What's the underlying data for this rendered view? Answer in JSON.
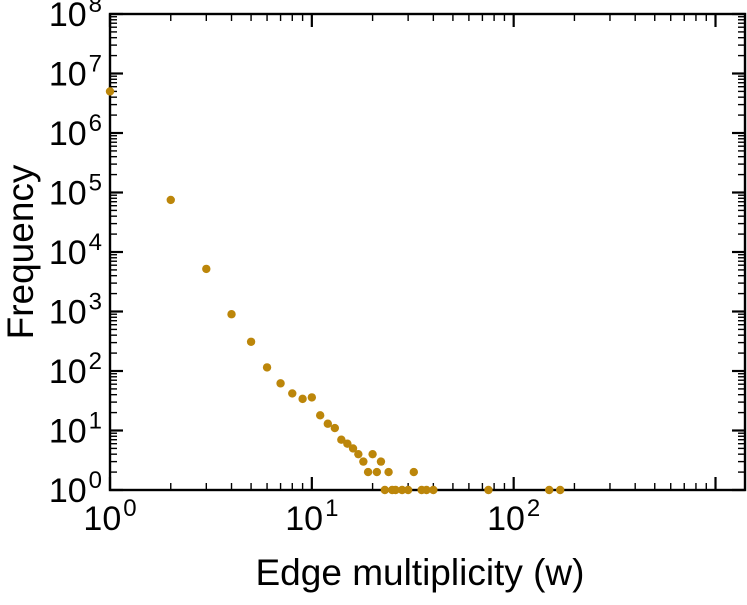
{
  "chart_data": {
    "type": "scatter",
    "title": "",
    "xlabel": "Edge multiplicity (w)",
    "ylabel": "Frequency",
    "xscale": "log",
    "yscale": "log",
    "xlim": [
      1,
      1400
    ],
    "ylim": [
      1,
      100000000
    ],
    "x_tick_label_exponents": [
      0,
      1,
      2
    ],
    "y_tick_label_exponents": [
      0,
      1,
      2,
      3,
      4,
      5,
      6,
      7,
      8
    ],
    "grid": false,
    "legend": false,
    "marker": "filled-circle",
    "point_color": "#bc860a",
    "axis_color": "#000000",
    "background_color": "#ffffff",
    "points": [
      [
        1,
        5000000
      ],
      [
        2,
        75000
      ],
      [
        3,
        5200
      ],
      [
        4,
        900
      ],
      [
        5,
        310
      ],
      [
        6,
        115
      ],
      [
        7,
        62
      ],
      [
        8,
        42
      ],
      [
        9,
        34
      ],
      [
        10,
        36
      ],
      [
        11,
        18
      ],
      [
        12,
        13
      ],
      [
        13,
        11
      ],
      [
        14,
        7
      ],
      [
        15,
        6
      ],
      [
        16,
        5
      ],
      [
        17,
        4
      ],
      [
        18,
        3
      ],
      [
        19,
        2
      ],
      [
        20,
        4
      ],
      [
        21,
        2
      ],
      [
        22,
        3
      ],
      [
        23,
        1
      ],
      [
        24,
        2
      ],
      [
        25,
        1
      ],
      [
        26,
        1
      ],
      [
        28,
        1
      ],
      [
        30,
        1
      ],
      [
        32,
        2
      ],
      [
        35,
        1
      ],
      [
        37,
        1
      ],
      [
        40,
        1
      ],
      [
        75,
        1
      ],
      [
        150,
        1
      ],
      [
        170,
        1
      ]
    ]
  }
}
